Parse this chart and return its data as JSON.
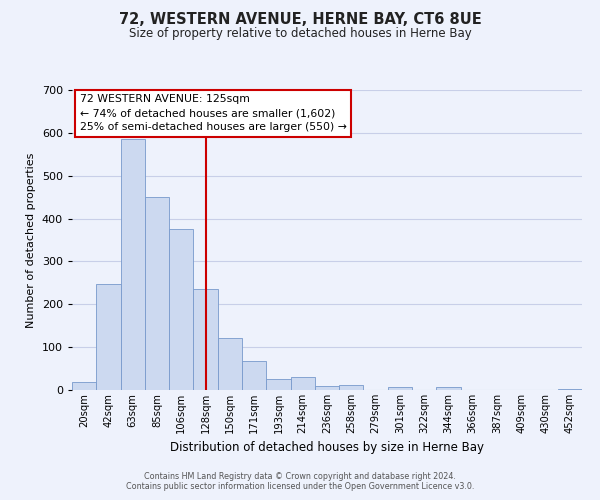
{
  "title": "72, WESTERN AVENUE, HERNE BAY, CT6 8UE",
  "subtitle": "Size of property relative to detached houses in Herne Bay",
  "xlabel": "Distribution of detached houses by size in Herne Bay",
  "ylabel": "Number of detached properties",
  "bin_labels": [
    "20sqm",
    "42sqm",
    "63sqm",
    "85sqm",
    "106sqm",
    "128sqm",
    "150sqm",
    "171sqm",
    "193sqm",
    "214sqm",
    "236sqm",
    "258sqm",
    "279sqm",
    "301sqm",
    "322sqm",
    "344sqm",
    "366sqm",
    "387sqm",
    "409sqm",
    "430sqm",
    "452sqm"
  ],
  "bar_heights": [
    18,
    248,
    585,
    450,
    375,
    235,
    122,
    67,
    25,
    30,
    10,
    12,
    0,
    8,
    0,
    8,
    0,
    0,
    0,
    0,
    3
  ],
  "bar_color": "#ccd9f0",
  "bar_edge_color": "#7799cc",
  "vline_x": 5,
  "vline_color": "#cc0000",
  "ylim": [
    0,
    700
  ],
  "yticks": [
    0,
    100,
    200,
    300,
    400,
    500,
    600,
    700
  ],
  "annotation_title": "72 WESTERN AVENUE: 125sqm",
  "annotation_line1": "← 74% of detached houses are smaller (1,602)",
  "annotation_line2": "25% of semi-detached houses are larger (550) →",
  "annotation_box_color": "#ffffff",
  "annotation_box_edge_color": "#cc0000",
  "footer1": "Contains HM Land Registry data © Crown copyright and database right 2024.",
  "footer2": "Contains public sector information licensed under the Open Government Licence v3.0.",
  "background_color": "#eef2fc",
  "grid_color": "#c8cfe8"
}
